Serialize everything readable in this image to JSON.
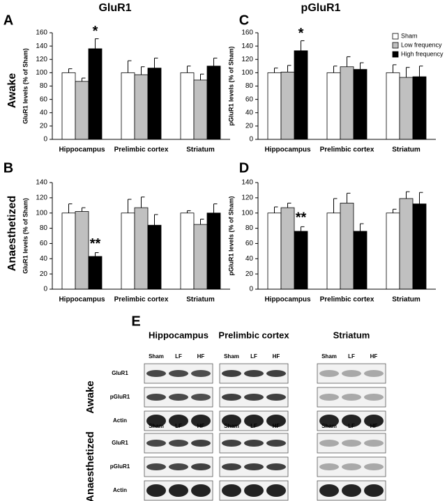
{
  "column_titles": [
    "GluR1",
    "pGluR1"
  ],
  "row_labels": [
    "Awake",
    "Anaesthetized"
  ],
  "chart_data": [
    {
      "type": "bar",
      "panel": "A",
      "ylabel": "GluR1 levels (% of Sham)",
      "categories": [
        "Hippocampus",
        "Prelimbic cortex",
        "Striatum"
      ],
      "series": [
        {
          "color": "#ffffff",
          "values": [
            100,
            100,
            100
          ],
          "errors": [
            6,
            18,
            10
          ]
        },
        {
          "color": "#c0c0c0",
          "values": [
            87,
            97,
            89
          ],
          "errors": [
            5,
            12,
            9
          ]
        },
        {
          "color": "#000000",
          "values": [
            136,
            107,
            110
          ],
          "errors": [
            15,
            15,
            12
          ]
        }
      ],
      "ylim": [
        0,
        160
      ],
      "yticks": [
        0,
        20,
        40,
        60,
        80,
        100,
        120,
        140,
        160
      ],
      "annotations": [
        {
          "text": "*"
        }
      ]
    },
    {
      "type": "bar",
      "panel": "B",
      "ylabel": "GluR1 levels (% of Sham)",
      "categories": [
        "Hippocampus",
        "Prelimbic cortex",
        "Striatum"
      ],
      "series": [
        {
          "color": "#ffffff",
          "values": [
            100,
            100,
            100
          ],
          "errors": [
            12,
            18,
            3
          ]
        },
        {
          "color": "#c0c0c0",
          "values": [
            102,
            107,
            85
          ],
          "errors": [
            5,
            14,
            7
          ]
        },
        {
          "color": "#000000",
          "values": [
            43,
            84,
            100
          ],
          "errors": [
            5,
            14,
            12
          ]
        }
      ],
      "ylim": [
        0,
        140
      ],
      "yticks": [
        0,
        20,
        40,
        60,
        80,
        100,
        120,
        140
      ],
      "annotations": [
        {
          "text": "**"
        }
      ]
    },
    {
      "type": "bar",
      "panel": "C",
      "ylabel": "pGluR1 levels (% of Sham)",
      "categories": [
        "Hippocampus",
        "Prelimbic cortex",
        "Striatum"
      ],
      "series": [
        {
          "name": "Sham",
          "color": "#ffffff",
          "values": [
            100,
            100,
            100
          ],
          "errors": [
            7,
            10,
            12
          ]
        },
        {
          "name": "Low frequency",
          "color": "#c0c0c0",
          "values": [
            101,
            109,
            93
          ],
          "errors": [
            10,
            15,
            15
          ]
        },
        {
          "name": "High frequency",
          "color": "#000000",
          "values": [
            133,
            105,
            94
          ],
          "errors": [
            15,
            10,
            16
          ]
        }
      ],
      "ylim": [
        0,
        160
      ],
      "yticks": [
        0,
        20,
        40,
        60,
        80,
        100,
        120,
        140,
        160
      ],
      "legend": "top right",
      "annotations": [
        {
          "text": "*"
        }
      ]
    },
    {
      "type": "bar",
      "panel": "D",
      "ylabel": "pGluR1 levels (% of Sham)",
      "categories": [
        "Hippocampus",
        "Prelimbic cortex",
        "Striatum"
      ],
      "series": [
        {
          "color": "#ffffff",
          "values": [
            100,
            100,
            100
          ],
          "errors": [
            8,
            19,
            5
          ]
        },
        {
          "color": "#c0c0c0",
          "values": [
            107,
            113,
            119
          ],
          "errors": [
            6,
            13,
            9
          ]
        },
        {
          "color": "#000000",
          "values": [
            76,
            76,
            112
          ],
          "errors": [
            6,
            10,
            15
          ]
        }
      ],
      "ylim": [
        0,
        140
      ],
      "yticks": [
        0,
        20,
        40,
        60,
        80,
        100,
        120,
        140
      ],
      "annotations": [
        {
          "text": "**"
        }
      ]
    }
  ],
  "blot": {
    "panel": "E",
    "regions": [
      "Hippocampus",
      "Prelimbic cortex",
      "Striatum"
    ],
    "lanes": [
      "Sham",
      "LF",
      "HF"
    ],
    "conditions": [
      {
        "label": "Awake",
        "rows": [
          "GluR1",
          "pGluR1",
          "Actin"
        ]
      },
      {
        "label": "Anaesthetized",
        "rows": [
          "GluR1",
          "pGluR1",
          "Actin"
        ]
      }
    ]
  }
}
